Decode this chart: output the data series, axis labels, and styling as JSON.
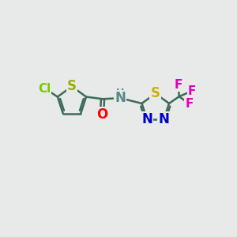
{
  "bg_color": "#e8eaea",
  "bond_color": "#3d6b58",
  "bond_width": 1.8,
  "atom_colors": {
    "Cl": "#70cc00",
    "S_thiophene": "#9ab000",
    "S_thiadiazole": "#c8b400",
    "O": "#ff0000",
    "N": "#0000cc",
    "NH": "#5a8888",
    "H": "#5a8888",
    "F": "#dd00bb"
  },
  "xlim": [
    0,
    10
  ],
  "ylim": [
    0,
    10
  ]
}
